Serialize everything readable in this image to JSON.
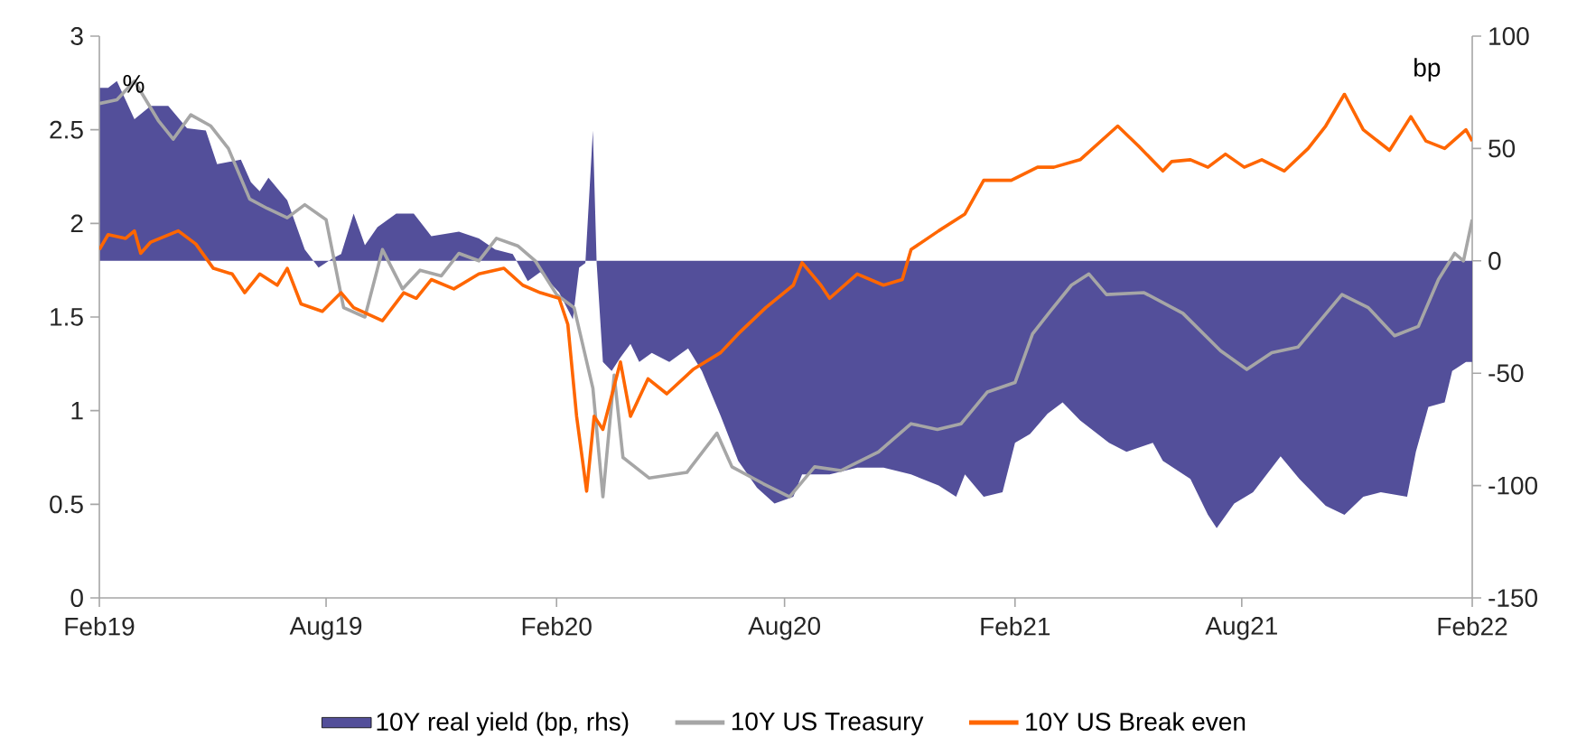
{
  "chart_data": {
    "type": "line",
    "ylabel": "%",
    "y2label": "bp",
    "legend": "bottom",
    "xlim": [
      "2019-02-01",
      "2022-02-01"
    ],
    "xticks": [
      {
        "value": "2019-02-01",
        "label": "Feb19"
      },
      {
        "value": "2019-08-01",
        "label": "Aug19"
      },
      {
        "value": "2020-02-01",
        "label": "Feb20"
      },
      {
        "value": "2020-08-01",
        "label": "Aug20"
      },
      {
        "value": "2021-02-01",
        "label": "Feb21"
      },
      {
        "value": "2021-08-01",
        "label": "Aug21"
      },
      {
        "value": "2022-02-01",
        "label": "Feb22"
      }
    ],
    "ylim": [
      0,
      3
    ],
    "yticks": [
      0,
      0.5,
      1,
      1.5,
      2,
      2.5,
      3
    ],
    "y2lim": [
      -150,
      100
    ],
    "y2ticks": [
      -150,
      -100,
      -50,
      0,
      50,
      100
    ],
    "series": [
      {
        "name": "10Y real yield (bp, rhs)",
        "type": "area",
        "axis": "y2",
        "color": "#534f9a",
        "x": [
          "2019-02-01",
          "2019-02-08",
          "2019-02-15",
          "2019-03-01",
          "2019-03-14",
          "2019-03-28",
          "2019-04-12",
          "2019-04-27",
          "2019-05-06",
          "2019-05-25",
          "2019-06-02",
          "2019-06-09",
          "2019-06-16",
          "2019-07-01",
          "2019-07-15",
          "2019-07-26",
          "2019-08-06",
          "2019-08-13",
          "2019-08-23",
          "2019-09-01",
          "2019-09-11",
          "2019-09-26",
          "2019-10-10",
          "2019-10-24",
          "2019-11-15",
          "2019-12-01",
          "2019-12-14",
          "2019-12-28",
          "2020-01-09",
          "2020-01-19",
          "2020-02-03",
          "2020-02-14",
          "2020-02-19",
          "2020-02-24",
          "2020-03-01",
          "2020-03-04",
          "2020-03-09",
          "2020-03-16",
          "2020-03-23",
          "2020-03-31",
          "2020-04-07",
          "2020-04-17",
          "2020-05-01",
          "2020-05-16",
          "2020-05-27",
          "2020-06-11",
          "2020-06-25",
          "2020-07-10",
          "2020-07-24",
          "2020-08-08",
          "2020-08-15",
          "2020-09-06",
          "2020-09-28",
          "2020-10-19",
          "2020-11-10",
          "2020-12-02",
          "2020-12-16",
          "2020-12-23",
          "2021-01-07",
          "2021-01-22",
          "2021-02-01",
          "2021-02-13",
          "2021-02-27",
          "2021-03-11",
          "2021-03-25",
          "2021-04-17",
          "2021-05-01",
          "2021-05-22",
          "2021-05-30",
          "2021-06-21",
          "2021-07-05",
          "2021-07-12",
          "2021-07-26",
          "2021-08-10",
          "2021-09-01",
          "2021-09-16",
          "2021-10-07",
          "2021-10-22",
          "2021-11-06",
          "2021-11-20",
          "2021-12-11",
          "2021-12-18",
          "2021-12-28",
          "2022-01-10",
          "2022-01-16",
          "2022-01-27",
          "2022-02-01"
        ],
        "values": [
          77,
          77,
          80,
          63,
          69,
          69,
          59,
          58,
          43,
          45,
          35,
          31,
          37,
          27,
          5,
          -3,
          1,
          3,
          21,
          7,
          15,
          21,
          21,
          11,
          13,
          10,
          5,
          3,
          -9,
          -5,
          -14,
          -26,
          -3,
          -1,
          58,
          -1,
          -45,
          -49,
          -43,
          -37,
          -45,
          -41,
          -45,
          -39,
          -49,
          -69,
          -89,
          -101,
          -108,
          -105,
          -95,
          -95,
          -92,
          -92,
          -95,
          -100,
          -105,
          -95,
          -105,
          -103,
          -81,
          -77,
          -68,
          -63,
          -71,
          -81,
          -85,
          -81,
          -89,
          -97,
          -113,
          -119,
          -108,
          -103,
          -87,
          -97,
          -109,
          -113,
          -105,
          -103,
          -105,
          -85,
          -65,
          -63,
          -49,
          -45,
          -45
        ]
      },
      {
        "name": "10Y US Treasury",
        "color": "#a6a6a6",
        "x": [
          "2019-02-01",
          "2019-02-15",
          "2019-03-01",
          "2019-03-20",
          "2019-04-01",
          "2019-04-15",
          "2019-05-01",
          "2019-05-15",
          "2019-06-01",
          "2019-06-15",
          "2019-07-01",
          "2019-07-15",
          "2019-08-01",
          "2019-08-15",
          "2019-09-01",
          "2019-09-15",
          "2019-10-01",
          "2019-10-15",
          "2019-11-01",
          "2019-11-15",
          "2019-12-01",
          "2019-12-15",
          "2020-01-01",
          "2020-01-15",
          "2020-02-01",
          "2020-02-15",
          "2020-03-01",
          "2020-03-09",
          "2020-03-18",
          "2020-03-25",
          "2020-04-15",
          "2020-05-15",
          "2020-06-08",
          "2020-06-20",
          "2020-07-15",
          "2020-08-05",
          "2020-08-25",
          "2020-09-15",
          "2020-10-15",
          "2020-11-10",
          "2020-12-01",
          "2020-12-20",
          "2021-01-10",
          "2021-02-01",
          "2021-02-15",
          "2021-03-01",
          "2021-03-18",
          "2021-04-01",
          "2021-04-15",
          "2021-05-15",
          "2021-06-15",
          "2021-07-15",
          "2021-08-05",
          "2021-08-25",
          "2021-09-15",
          "2021-10-20",
          "2021-11-10",
          "2021-12-01",
          "2021-12-20",
          "2022-01-05",
          "2022-01-18",
          "2022-01-25",
          "2022-02-01"
        ],
        "values": [
          2.64,
          2.66,
          2.76,
          2.55,
          2.45,
          2.58,
          2.52,
          2.4,
          2.13,
          2.08,
          2.03,
          2.1,
          2.02,
          1.55,
          1.5,
          1.86,
          1.65,
          1.75,
          1.72,
          1.84,
          1.8,
          1.92,
          1.88,
          1.8,
          1.62,
          1.55,
          1.12,
          0.54,
          1.19,
          0.75,
          0.64,
          0.67,
          0.88,
          0.7,
          0.61,
          0.54,
          0.7,
          0.68,
          0.78,
          0.93,
          0.9,
          0.93,
          1.1,
          1.15,
          1.41,
          1.53,
          1.67,
          1.73,
          1.62,
          1.63,
          1.52,
          1.32,
          1.22,
          1.31,
          1.34,
          1.62,
          1.55,
          1.4,
          1.45,
          1.7,
          1.84,
          1.8,
          2.02
        ]
      },
      {
        "name": "10Y US Break even",
        "color": "#ff6600",
        "x": [
          "2019-02-01",
          "2019-02-08",
          "2019-02-22",
          "2019-03-01",
          "2019-03-06",
          "2019-03-14",
          "2019-04-05",
          "2019-04-19",
          "2019-05-03",
          "2019-05-18",
          "2019-05-28",
          "2019-06-09",
          "2019-06-23",
          "2019-07-01",
          "2019-07-12",
          "2019-07-29",
          "2019-08-13",
          "2019-08-23",
          "2019-09-15",
          "2019-10-02",
          "2019-10-12",
          "2019-10-24",
          "2019-11-11",
          "2019-12-01",
          "2019-12-21",
          "2020-01-05",
          "2020-01-19",
          "2020-02-03",
          "2020-02-10",
          "2020-02-17",
          "2020-02-25",
          "2020-03-02",
          "2020-03-09",
          "2020-03-23",
          "2020-03-31",
          "2020-04-14",
          "2020-04-29",
          "2020-05-20",
          "2020-06-11",
          "2020-06-25",
          "2020-07-17",
          "2020-08-08",
          "2020-08-15",
          "2020-08-30",
          "2020-09-06",
          "2020-09-28",
          "2020-10-19",
          "2020-11-03",
          "2020-11-10",
          "2020-12-02",
          "2020-12-23",
          "2021-01-07",
          "2021-01-29",
          "2021-02-19",
          "2021-03-04",
          "2021-03-25",
          "2021-04-24",
          "2021-05-11",
          "2021-05-30",
          "2021-06-06",
          "2021-06-21",
          "2021-07-05",
          "2021-07-19",
          "2021-08-03",
          "2021-08-17",
          "2021-09-04",
          "2021-09-23",
          "2021-10-07",
          "2021-10-22",
          "2021-11-06",
          "2021-11-27",
          "2021-12-14",
          "2021-12-26",
          "2022-01-10",
          "2022-01-27",
          "2022-02-01"
        ],
        "values": [
          1.86,
          1.94,
          1.92,
          1.96,
          1.84,
          1.9,
          1.96,
          1.89,
          1.76,
          1.73,
          1.63,
          1.73,
          1.67,
          1.76,
          1.57,
          1.53,
          1.63,
          1.55,
          1.48,
          1.63,
          1.6,
          1.7,
          1.65,
          1.73,
          1.76,
          1.67,
          1.63,
          1.6,
          1.46,
          0.97,
          0.57,
          0.97,
          0.9,
          1.26,
          0.97,
          1.17,
          1.09,
          1.22,
          1.31,
          1.41,
          1.55,
          1.67,
          1.79,
          1.67,
          1.6,
          1.73,
          1.67,
          1.7,
          1.86,
          1.96,
          2.05,
          2.23,
          2.23,
          2.3,
          2.3,
          2.34,
          2.52,
          2.41,
          2.28,
          2.33,
          2.34,
          2.3,
          2.37,
          2.3,
          2.34,
          2.28,
          2.4,
          2.52,
          2.69,
          2.5,
          2.39,
          2.57,
          2.44,
          2.4,
          2.5,
          2.44
        ]
      }
    ]
  }
}
